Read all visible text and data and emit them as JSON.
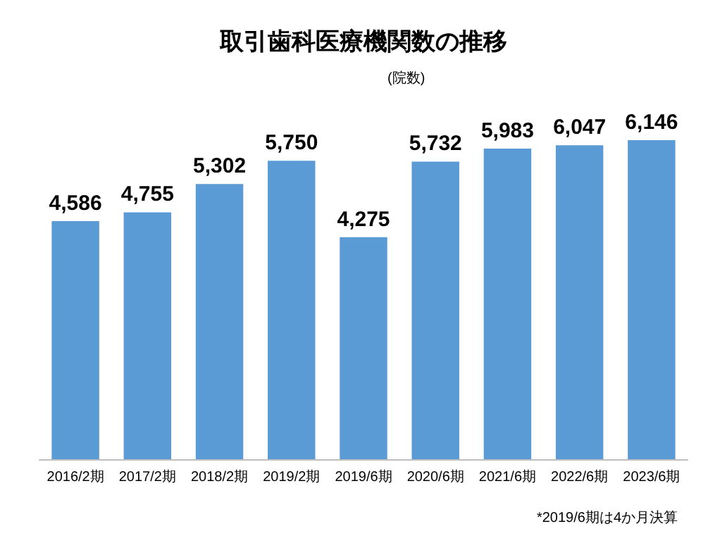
{
  "chart_data": {
    "type": "bar",
    "title": "取引歯科医療機関数の推移",
    "subtitle": "(院数)",
    "annotations": [
      "*2019/6期は4か月決算"
    ],
    "categories": [
      "2016/2期",
      "2017/2期",
      "2018/2期",
      "2019/2期",
      "2019/6期",
      "2020/6期",
      "2021/6期",
      "2022/6期",
      "2023/6期"
    ],
    "values": [
      4586,
      4755,
      5302,
      5750,
      4275,
      5732,
      5983,
      6047,
      6146
    ],
    "value_labels": [
      "4,586",
      "4,755",
      "5,302",
      "5,750",
      "4,275",
      "5,732",
      "5,983",
      "6,047",
      "6,146"
    ],
    "color": "#5b9bd5"
  }
}
